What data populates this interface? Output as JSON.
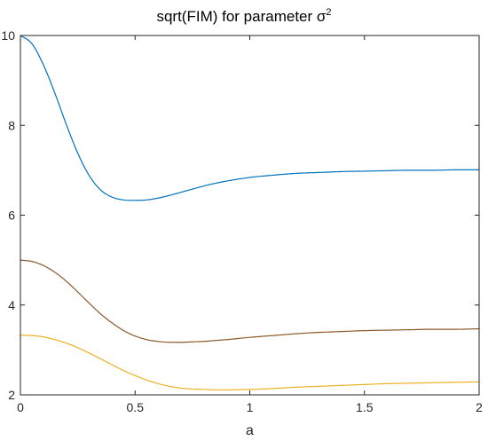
{
  "chart_data": {
    "type": "line",
    "title": "sqrt(FIM) for parameter σ",
    "title_superscript": "2",
    "xlabel": "a",
    "ylabel": "",
    "xlim": [
      0,
      2
    ],
    "ylim": [
      2,
      10
    ],
    "xticks": [
      0,
      0.5,
      1,
      1.5,
      2
    ],
    "xtick_labels": [
      "0",
      "0.5",
      "1",
      "1.5",
      "2"
    ],
    "yticks": [
      2,
      4,
      6,
      8,
      10
    ],
    "ytick_labels": [
      "2",
      "4",
      "6",
      "8",
      "10"
    ],
    "grid": false,
    "box": true,
    "series": [
      {
        "color": "#0072BD",
        "x": [
          0,
          0.05,
          0.1,
          0.15,
          0.2,
          0.25,
          0.3,
          0.35,
          0.4,
          0.45,
          0.5,
          0.55,
          0.6,
          0.65,
          0.7,
          0.75,
          0.8,
          0.85,
          0.9,
          1.0,
          1.1,
          1.2,
          1.3,
          1.4,
          1.5,
          1.6,
          1.7,
          1.8,
          1.9,
          2.0
        ],
        "values": [
          10.0,
          9.82,
          9.35,
          8.72,
          8.02,
          7.38,
          6.88,
          6.56,
          6.4,
          6.34,
          6.33,
          6.34,
          6.38,
          6.44,
          6.51,
          6.58,
          6.65,
          6.71,
          6.76,
          6.84,
          6.89,
          6.93,
          6.95,
          6.97,
          6.98,
          6.99,
          7.0,
          7.0,
          7.01,
          7.01
        ]
      },
      {
        "color": "#8B5A2B",
        "x": [
          0,
          0.05,
          0.1,
          0.15,
          0.2,
          0.25,
          0.3,
          0.35,
          0.4,
          0.45,
          0.5,
          0.55,
          0.6,
          0.65,
          0.7,
          0.75,
          0.8,
          0.85,
          0.9,
          1.0,
          1.1,
          1.2,
          1.3,
          1.4,
          1.5,
          1.6,
          1.7,
          1.8,
          1.9,
          2.0
        ],
        "values": [
          5.0,
          4.97,
          4.88,
          4.73,
          4.53,
          4.29,
          4.04,
          3.8,
          3.6,
          3.43,
          3.31,
          3.23,
          3.19,
          3.17,
          3.17,
          3.18,
          3.19,
          3.21,
          3.23,
          3.28,
          3.32,
          3.36,
          3.39,
          3.41,
          3.43,
          3.44,
          3.45,
          3.46,
          3.46,
          3.47
        ]
      },
      {
        "color": "#EDB120",
        "x": [
          0,
          0.05,
          0.1,
          0.15,
          0.2,
          0.25,
          0.3,
          0.35,
          0.4,
          0.45,
          0.5,
          0.55,
          0.6,
          0.65,
          0.7,
          0.75,
          0.8,
          0.85,
          0.9,
          1.0,
          1.1,
          1.2,
          1.3,
          1.4,
          1.5,
          1.6,
          1.7,
          1.8,
          1.9,
          2.0
        ],
        "values": [
          3.33,
          3.32,
          3.29,
          3.23,
          3.15,
          3.05,
          2.93,
          2.8,
          2.67,
          2.54,
          2.43,
          2.33,
          2.25,
          2.19,
          2.15,
          2.13,
          2.12,
          2.11,
          2.11,
          2.12,
          2.14,
          2.17,
          2.19,
          2.21,
          2.23,
          2.25,
          2.26,
          2.27,
          2.28,
          2.29
        ]
      }
    ]
  }
}
